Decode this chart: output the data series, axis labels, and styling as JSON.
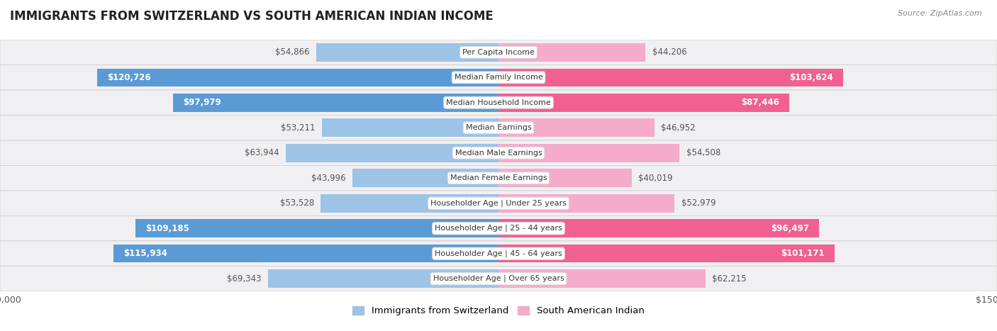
{
  "title": "IMMIGRANTS FROM SWITZERLAND VS SOUTH AMERICAN INDIAN INCOME",
  "source": "Source: ZipAtlas.com",
  "categories": [
    "Per Capita Income",
    "Median Family Income",
    "Median Household Income",
    "Median Earnings",
    "Median Male Earnings",
    "Median Female Earnings",
    "Householder Age | Under 25 years",
    "Householder Age | 25 - 44 years",
    "Householder Age | 45 - 64 years",
    "Householder Age | Over 65 years"
  ],
  "switzerland_values": [
    54866,
    120726,
    97979,
    53211,
    63944,
    43996,
    53528,
    109185,
    115934,
    69343
  ],
  "south_american_values": [
    44206,
    103624,
    87446,
    46952,
    54508,
    40019,
    52979,
    96497,
    101171,
    62215
  ],
  "switzerland_labels": [
    "$54,866",
    "$120,726",
    "$97,979",
    "$53,211",
    "$63,944",
    "$43,996",
    "$53,528",
    "$109,185",
    "$115,934",
    "$69,343"
  ],
  "south_american_labels": [
    "$44,206",
    "$103,624",
    "$87,446",
    "$46,952",
    "$54,508",
    "$40,019",
    "$52,979",
    "$96,497",
    "$101,171",
    "$62,215"
  ],
  "switzerland_color_dark": "#5b9bd5",
  "switzerland_color_light": "#9dc3e6",
  "south_american_color_dark": "#f06090",
  "south_american_color_light": "#f4acca",
  "max_value": 150000,
  "background_color": "#ffffff",
  "row_bg_odd": "#f0f0f0",
  "row_bg_even": "#e8e8e8",
  "bar_height": 0.72,
  "legend_switzerland": "Immigrants from Switzerland",
  "legend_south_american": "South American Indian",
  "inside_label_threshold": 70000,
  "label_fontsize": 8.5,
  "cat_fontsize": 8.0,
  "title_fontsize": 12
}
